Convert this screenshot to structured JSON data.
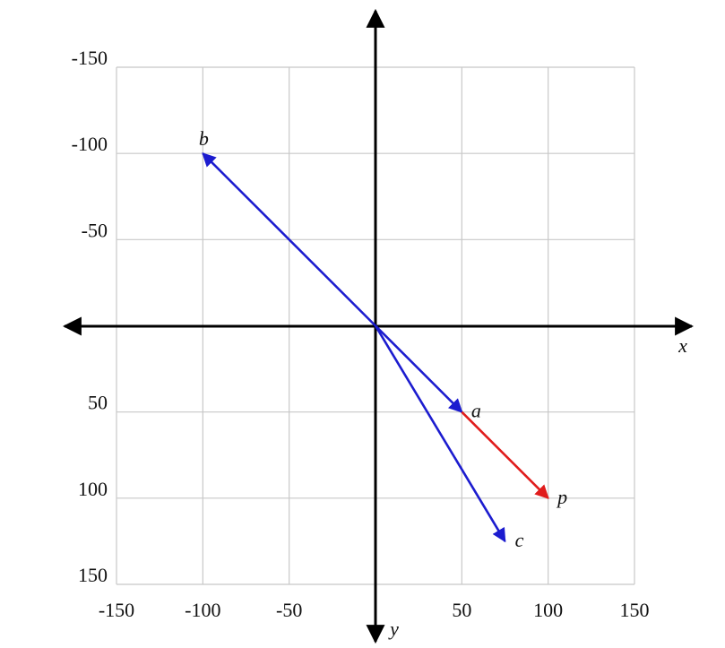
{
  "chart_data": {
    "type": "vector",
    "xlim": [
      -150,
      150
    ],
    "ylim": [
      -150,
      150
    ],
    "y_inverted": true,
    "xticks": [
      -150,
      -100,
      -50,
      50,
      100,
      150
    ],
    "yticks": [
      -150,
      -100,
      -50,
      50,
      100,
      150
    ],
    "grid": true,
    "x_label": "x",
    "y_label": "y",
    "vectors": [
      {
        "name": "a",
        "color": "#1c1ccf",
        "from": [
          0,
          0
        ],
        "to": [
          50,
          50
        ]
      },
      {
        "name": "b",
        "color": "#1c1ccf",
        "from": [
          0,
          0
        ],
        "to": [
          -100,
          -100
        ]
      },
      {
        "name": "c",
        "color": "#1c1ccf",
        "from": [
          0,
          0
        ],
        "to": [
          75,
          125
        ]
      },
      {
        "name": "p",
        "color": "#e01c1c",
        "from": [
          50,
          50
        ],
        "to": [
          100,
          100
        ]
      }
    ]
  }
}
